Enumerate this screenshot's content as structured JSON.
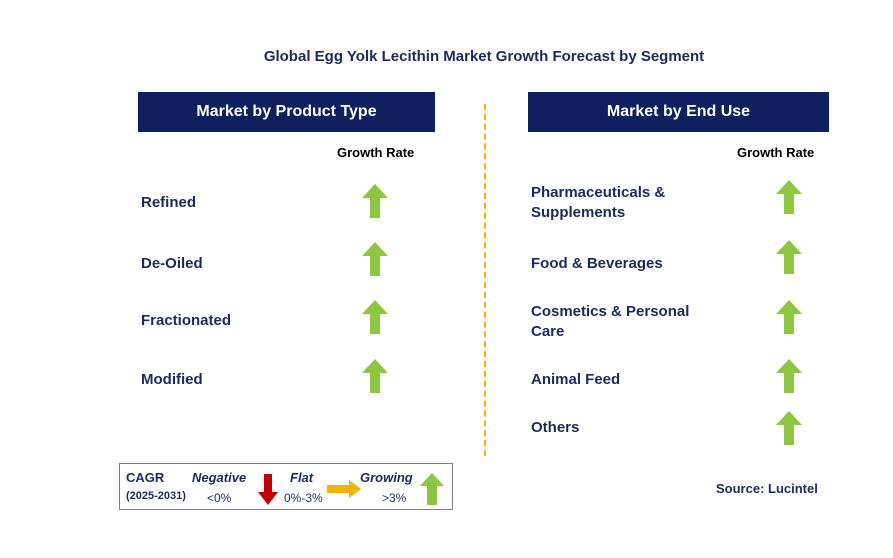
{
  "title": "Global Egg Yolk Lecithin Market Growth Forecast by Segment",
  "left_panel": {
    "header": "Market by Product Type",
    "growth_label": "Growth Rate",
    "segments": [
      {
        "label": "Refined",
        "trend": "growing"
      },
      {
        "label": "De-Oiled",
        "trend": "growing"
      },
      {
        "label": "Fractionated",
        "trend": "growing"
      },
      {
        "label": "Modified",
        "trend": "growing"
      }
    ]
  },
  "right_panel": {
    "header": "Market by End Use",
    "growth_label": "Growth Rate",
    "segments": [
      {
        "label_line1": "Pharmaceuticals &",
        "label_line2": "Supplements",
        "trend": "growing"
      },
      {
        "label_line1": "Food & Beverages",
        "label_line2": "",
        "trend": "growing"
      },
      {
        "label_line1": "Cosmetics & Personal",
        "label_line2": "Care",
        "trend": "growing"
      },
      {
        "label_line1": "Animal Feed",
        "label_line2": "",
        "trend": "growing"
      },
      {
        "label_line1": "Others",
        "label_line2": "",
        "trend": "growing"
      }
    ]
  },
  "legend": {
    "cagr": "CAGR",
    "period": "(2025-2031)",
    "negative_label": "Negative",
    "negative_range": "<0%",
    "flat_label": "Flat",
    "flat_range": "0%-3%",
    "growing_label": "Growing",
    "growing_range": ">3%"
  },
  "source": "Source: Lucintel",
  "colors": {
    "header_bg": "#0e2060",
    "text": "#1b2a5c",
    "growing": "#8dc63f",
    "negative": "#c00000",
    "flat": "#f2b400",
    "divider": "#f2b400"
  }
}
